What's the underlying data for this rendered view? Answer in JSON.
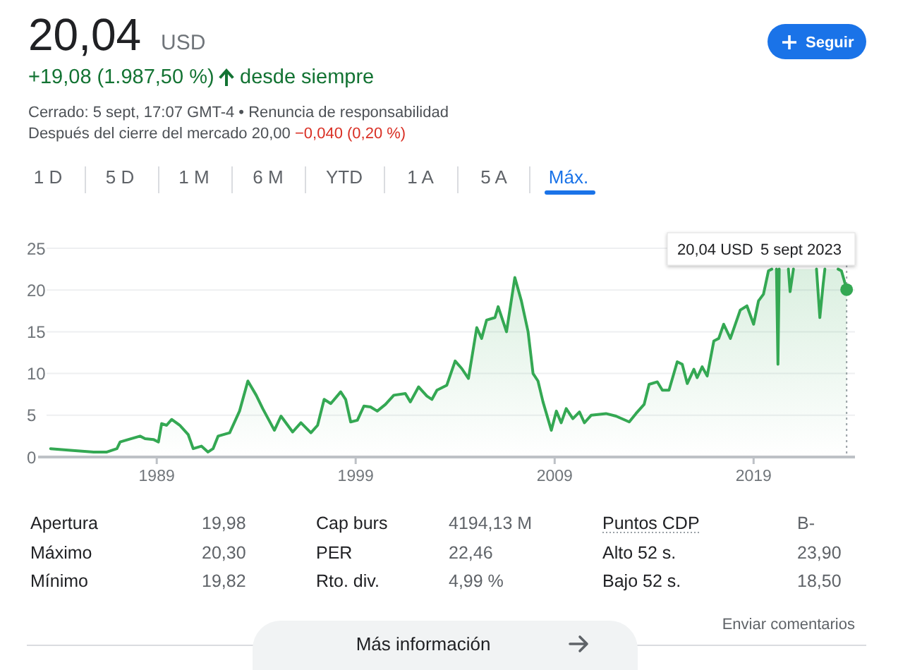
{
  "chart_data": {
    "type": "area",
    "title": "20,04",
    "xlim": [
      "1983-01-15",
      "2024-02-05"
    ],
    "xticks": [
      "1989",
      "1999",
      "2009",
      "2019"
    ],
    "ylim": [
      0,
      25
    ],
    "yticks": [
      0,
      5,
      10,
      15,
      20,
      25
    ],
    "grid": "y",
    "series": [
      {
        "color": "#34a853",
        "x": [
          "1983-09",
          "1984-09",
          "1985-11",
          "1986-07",
          "1987-01",
          "1987-03",
          "1987-08",
          "1988-03",
          "1988-06",
          "1988-11",
          "1989-02",
          "1989-04",
          "1989-07",
          "1989-10",
          "1990-03",
          "1990-08",
          "1990-11",
          "1991-04",
          "1991-08",
          "1991-11",
          "1992-02",
          "1992-09",
          "1993-03",
          "1993-08",
          "1994-01",
          "1994-05",
          "1994-12",
          "1995-04",
          "1995-11",
          "1996-04",
          "1996-08",
          "1996-10",
          "1997-02",
          "1997-06",
          "1997-10",
          "1998-04",
          "1998-07",
          "1998-10",
          "1999-02",
          "1999-06",
          "1999-10",
          "2000-02",
          "2000-07",
          "2000-12",
          "2001-07",
          "2001-10",
          "2002-03",
          "2002-08",
          "2002-11",
          "2003-02",
          "2003-08",
          "2004-01",
          "2004-05",
          "2004-09",
          "2005-02",
          "2005-05",
          "2005-08",
          "2006-01",
          "2006-03",
          "2006-08",
          "2007-01",
          "2007-05",
          "2007-09",
          "2007-12",
          "2008-03",
          "2008-06",
          "2008-11",
          "2009-02",
          "2009-05",
          "2009-08",
          "2009-12",
          "2010-04",
          "2010-07",
          "2010-11",
          "2011-08",
          "2012-02",
          "2012-10",
          "2013-02",
          "2013-07",
          "2013-10",
          "2014-03",
          "2014-06",
          "2014-10",
          "2015-03",
          "2015-06",
          "2015-09",
          "2016-01",
          "2016-03",
          "2016-06",
          "2016-09",
          "2017-01",
          "2017-04",
          "2017-07",
          "2017-11",
          "2018-05",
          "2018-09",
          "2019-01",
          "2019-04",
          "2019-07",
          "2019-10",
          "2019-12",
          "2020-01",
          "2020-02-25",
          "2020-03-23",
          "2020-04-15",
          "2020-06",
          "2020-10",
          "2020-11",
          "2021-01",
          "2021-02",
          "2022-03",
          "2022-05",
          "2022-07",
          "2022-08",
          "2022-09",
          "2023-04",
          "2023-06",
          "2023-07-20",
          "2023-09-05"
        ],
        "values": [
          1.0,
          0.8,
          0.6,
          0.6,
          1.0,
          1.8,
          2.1,
          2.5,
          2.2,
          2.1,
          1.8,
          4.0,
          3.8,
          4.5,
          3.8,
          2.7,
          1.0,
          1.3,
          0.6,
          1.0,
          2.5,
          2.9,
          5.5,
          9.1,
          7.4,
          5.8,
          3.2,
          4.9,
          3.0,
          4.1,
          3.3,
          2.9,
          3.8,
          6.9,
          6.4,
          7.8,
          6.9,
          4.2,
          4.4,
          6.1,
          6.0,
          5.5,
          6.3,
          7.4,
          7.6,
          6.6,
          8.4,
          7.3,
          6.9,
          8.0,
          8.6,
          11.5,
          10.6,
          9.4,
          15.5,
          14.2,
          16.4,
          16.7,
          18.0,
          15.0,
          21.5,
          18.7,
          15.0,
          10.0,
          9.1,
          6.6,
          3.2,
          5.5,
          4.1,
          5.8,
          4.6,
          5.4,
          4.1,
          5.0,
          5.2,
          4.9,
          4.2,
          5.2,
          6.3,
          8.7,
          9.0,
          8.0,
          8.0,
          11.4,
          11.1,
          8.8,
          10.5,
          9.5,
          10.8,
          9.7,
          13.9,
          14.2,
          15.9,
          14.2,
          17.6,
          18.1,
          15.9,
          18.7,
          19.5,
          22.3,
          22.5,
          null,
          22.5,
          11.1,
          22.5,
          null,
          22.5,
          19.8,
          22.5,
          null,
          22.5,
          16.7,
          20.7,
          22.5,
          null,
          22.5,
          22.3,
          21.2,
          20.04
        ]
      },
      {
        "type": "scatter",
        "color": "#34a853",
        "marker": "circle",
        "x": [
          "2023-09-05"
        ],
        "values": [
          20.04
        ]
      }
    ],
    "ref_lines": [
      {
        "axis": "x",
        "value": "2023-09-05",
        "color": "#9aa0a6",
        "line_style": "dotted"
      }
    ],
    "annotations": [
      "USD",
      "+19,08 (1.987,50 %)",
      "desde siempre",
      "Cerrado: 5 sept, 17:07 GMT-4 • Renuncia de responsabilidad",
      "Después del cierre del mercado 20,00",
      "−0,040 (0,20 %)",
      "Seguir",
      "1 D",
      "5 D",
      "1 M",
      "6 M",
      "YTD",
      "1 A",
      "5 A",
      "Máx.",
      "Apertura",
      "19,98",
      "Cap burs",
      "4194,13 M",
      "Puntos CDP",
      "B-",
      "Máximo",
      "20,30",
      "PER",
      "22,46",
      "Alto 52 s.",
      "23,90",
      "Mínimo",
      "19,82",
      "Rto. div.",
      "4,99 %",
      "Bajo 52 s.",
      "18,50",
      "Enviar comentarios",
      "Más información",
      "20,04 USD",
      "5 sept 2023"
    ]
  }
}
